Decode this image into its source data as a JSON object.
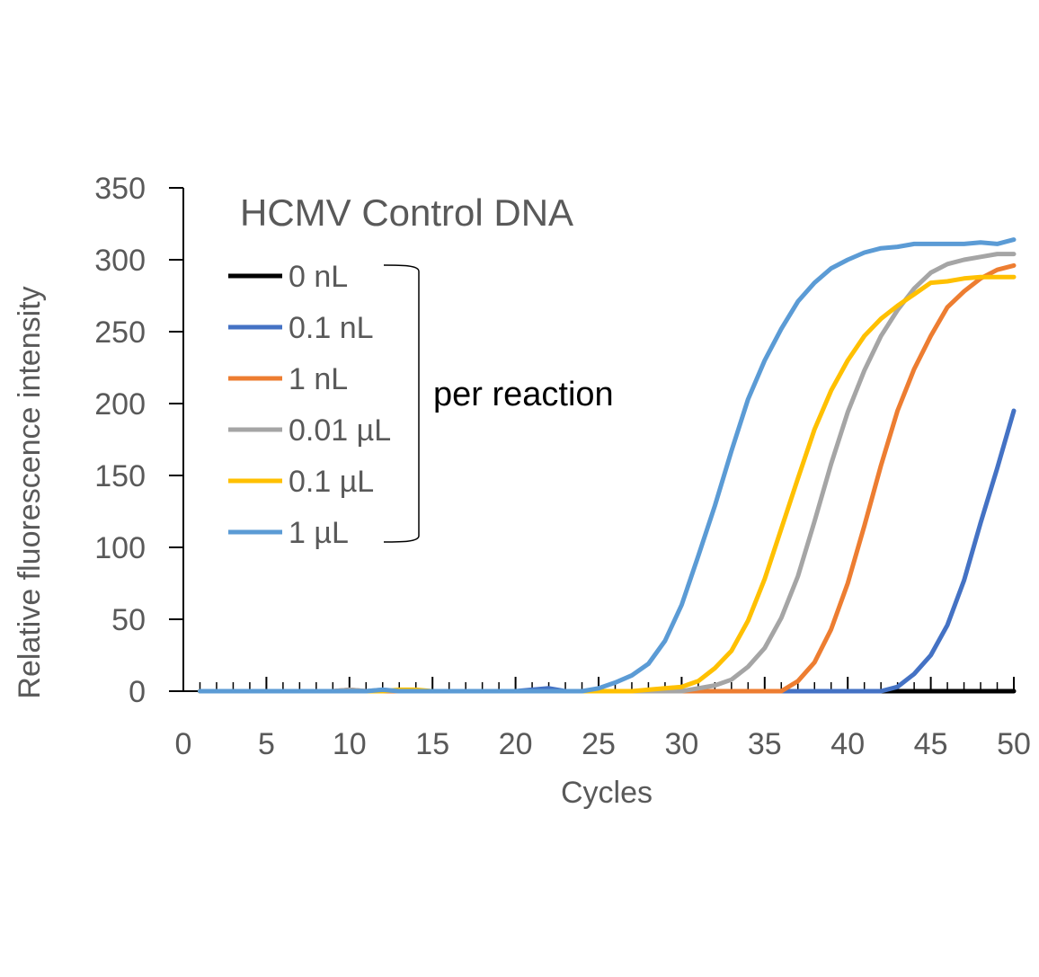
{
  "chart_data": {
    "type": "line",
    "title": "HCMV Control DNA",
    "xlabel": "Cycles",
    "ylabel": "Relative fluorescence intensity",
    "xlim": [
      0,
      50
    ],
    "ylim": [
      0,
      350
    ],
    "xticks": [
      0,
      5,
      10,
      15,
      20,
      25,
      30,
      35,
      40,
      45,
      50
    ],
    "yticks": [
      0,
      50,
      100,
      150,
      200,
      250,
      300,
      350
    ],
    "grid": false,
    "legend_position": "top-left",
    "annotation": "per reaction",
    "x": [
      1,
      2,
      3,
      4,
      5,
      6,
      7,
      8,
      9,
      10,
      11,
      12,
      13,
      14,
      15,
      16,
      17,
      18,
      19,
      20,
      21,
      22,
      23,
      24,
      25,
      26,
      27,
      28,
      29,
      30,
      31,
      32,
      33,
      34,
      35,
      36,
      37,
      38,
      39,
      40,
      41,
      42,
      43,
      44,
      45,
      46,
      47,
      48,
      49,
      50
    ],
    "series": [
      {
        "name": "0 nL",
        "color": "#000000",
        "values": [
          0,
          0,
          0,
          0,
          0,
          0,
          0,
          0,
          0,
          0,
          0,
          0,
          0,
          0,
          0,
          0,
          0,
          0,
          0,
          0,
          0,
          0,
          0,
          0,
          0,
          0,
          0,
          0,
          0,
          0,
          0,
          0,
          0,
          0,
          0,
          0,
          0,
          0,
          0,
          0,
          0,
          0,
          0,
          0,
          0,
          0,
          0,
          0,
          0,
          0
        ]
      },
      {
        "name": "0.1 nL",
        "color": "#4472C4",
        "values": [
          0,
          0,
          0,
          0,
          0,
          0,
          0,
          0,
          0,
          0,
          0,
          0,
          0,
          0,
          0,
          0,
          0,
          0,
          0,
          0,
          1,
          2,
          0,
          0,
          0,
          0,
          0,
          0,
          0,
          0,
          0,
          0,
          0,
          0,
          0,
          0,
          0,
          0,
          0,
          0,
          0,
          0,
          3,
          12,
          25,
          46,
          77,
          117,
          155,
          195
        ]
      },
      {
        "name": "1 nL",
        "color": "#ED7D31",
        "values": [
          0,
          0,
          0,
          0,
          0,
          0,
          0,
          0,
          0,
          1,
          0,
          0,
          0,
          0,
          0,
          0,
          0,
          0,
          0,
          0,
          0,
          0,
          0,
          0,
          0,
          0,
          0,
          0,
          0,
          0,
          0,
          0,
          0,
          0,
          0,
          0,
          7,
          20,
          43,
          75,
          115,
          157,
          195,
          224,
          247,
          267,
          278,
          287,
          293,
          296
        ]
      },
      {
        "name": "0.01 µL",
        "color": "#A5A5A5",
        "values": [
          0,
          0,
          0,
          0,
          0,
          0,
          0,
          0,
          0,
          1,
          0,
          1,
          0,
          0,
          0,
          0,
          0,
          0,
          0,
          0,
          0,
          0,
          0,
          0,
          0,
          0,
          0,
          0,
          0,
          0,
          2,
          4,
          8,
          17,
          30,
          51,
          80,
          118,
          158,
          194,
          223,
          247,
          265,
          280,
          291,
          297,
          300,
          302,
          304,
          304
        ]
      },
      {
        "name": "0.1 µL",
        "color": "#FFC000",
        "values": [
          0,
          0,
          0,
          0,
          0,
          0,
          0,
          0,
          0,
          0,
          0,
          0,
          1,
          1,
          0,
          0,
          0,
          0,
          0,
          0,
          0,
          0,
          0,
          0,
          0,
          0,
          0,
          1,
          2,
          3,
          7,
          16,
          28,
          49,
          78,
          113,
          148,
          182,
          209,
          230,
          247,
          259,
          268,
          276,
          284,
          285,
          287,
          288,
          288,
          288
        ]
      },
      {
        "name": "1 µL",
        "color": "#5B9BD5",
        "values": [
          0,
          0,
          0,
          0,
          0,
          0,
          0,
          0,
          0,
          0,
          0,
          1,
          0,
          0,
          0,
          0,
          0,
          0,
          0,
          0,
          0,
          0,
          0,
          0,
          2,
          6,
          11,
          19,
          35,
          60,
          94,
          129,
          167,
          203,
          230,
          252,
          271,
          284,
          294,
          300,
          305,
          308,
          309,
          311,
          311,
          311,
          311,
          312,
          311,
          314
        ]
      }
    ]
  }
}
